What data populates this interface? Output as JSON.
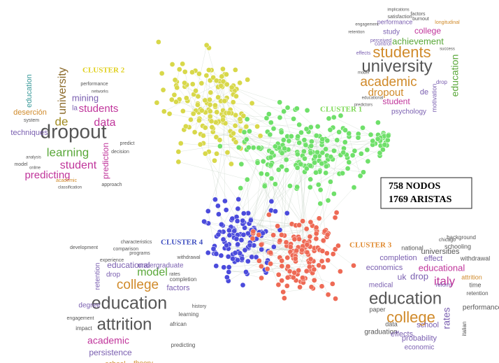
{
  "info_box": {
    "nodes": "758 NODOS",
    "edges": "1769 ARISTAS"
  },
  "clusters": [
    {
      "label": "CLUSTER 1",
      "words": [
        "students",
        "university",
        "academic",
        "dropout",
        "education",
        "achievement",
        "college",
        "performance",
        "study",
        "student",
        "psychology",
        "de",
        "motivation",
        "implications",
        "factors",
        "satisfaction",
        "burnout",
        "engagement",
        "longitudinal",
        "retention",
        "perceived",
        "control",
        "effects",
        "model",
        "predictors",
        "success",
        "educational",
        "drop"
      ]
    },
    {
      "label": "CLUSTER 2",
      "words": [
        "dropout",
        "university",
        "de",
        "data",
        "students",
        "learning",
        "student",
        "predicting",
        "mining",
        "education",
        "techniques",
        "deserción",
        "prediction",
        "la",
        "performance",
        "networks",
        "system",
        "analysis",
        "model",
        "online",
        "academic",
        "approach",
        "classification",
        "decision",
        "predict"
      ]
    },
    {
      "label": "CLUSTER 3",
      "words": [
        "education",
        "college",
        "italy",
        "educational",
        "drop",
        "uk",
        "effect",
        "completion",
        "universities",
        "national",
        "chicago",
        "schooling",
        "background",
        "economics",
        "rates",
        "performance",
        "school",
        "graduation",
        "effects",
        "probability",
        "economic",
        "medical",
        "paper",
        "data",
        "reform",
        "attrition",
        "time",
        "retention",
        "italian",
        "withdrawal"
      ]
    },
    {
      "label": "CLUSTER 4",
      "words": [
        "education",
        "attrition",
        "college",
        "model",
        "educational",
        "academic",
        "persistence",
        "school",
        "theory",
        "factors",
        "retention",
        "undergraduate",
        "degree",
        "drop",
        "learning",
        "african",
        "impact",
        "engagement",
        "development",
        "characteristics",
        "comparison",
        "programs",
        "experience",
        "withdrawal",
        "predicting",
        "history",
        "completion",
        "rates"
      ]
    }
  ]
}
